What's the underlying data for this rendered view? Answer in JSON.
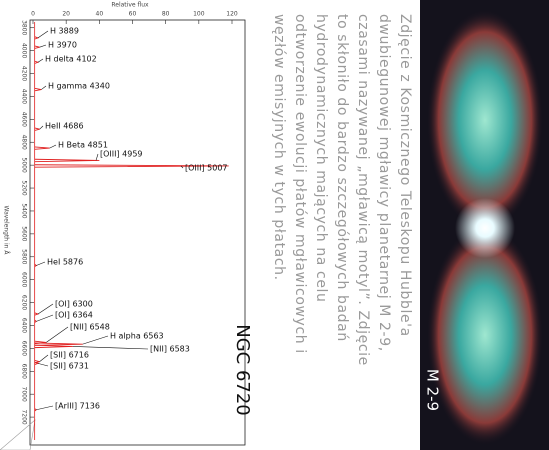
{
  "chart_data": {
    "type": "spectrum",
    "title": "NGC 6720",
    "xlabel": "Wavelength in Å",
    "ylabel": "Relative flux",
    "x": [
      3889,
      3970,
      4102,
      4340,
      4686,
      4851,
      4959,
      5007,
      5876,
      6300,
      6364,
      6548,
      6563,
      6583,
      6716,
      6731,
      7136
    ],
    "values": [
      3,
      4,
      3,
      5,
      4,
      10,
      40,
      118,
      2,
      3,
      2,
      8,
      30,
      24,
      4,
      3,
      2
    ],
    "labels": [
      "H 3889",
      "H 3970",
      "H delta 4102",
      "H gamma 4340",
      "HeII 4686",
      "H Beta 4851",
      "[OIII] 4959",
      "[OIII] 5007",
      "HeI 5876",
      "[OI] 6300",
      "[OI] 6364",
      "[NII] 6548",
      "H alpha 6563",
      "[NII] 6583",
      "[SII] 6716",
      "[SII] 6731",
      "[ArIII] 7136"
    ],
    "color": "#e02020",
    "xlim": [
      3750,
      7400
    ],
    "xticks": [
      3800,
      4000,
      4200,
      4400,
      4600,
      4800,
      5000,
      5200,
      5400,
      5600,
      5800,
      6000,
      6200,
      6400,
      6600,
      6800,
      7000,
      7200
    ],
    "ylim": [
      0,
      120
    ],
    "yticks": [
      0,
      20,
      40,
      60,
      80,
      100,
      120
    ]
  },
  "caption": {
    "lines": [
      "Zdjęcie z Kosmicznego Teleskopu Hubble'a",
      "dwubiegunowej mgławicy planetarnej M 2-9,",
      "czasami nazywanej „mgławicą motyl”. Zdjęcie",
      "to skłoniło do bardzo szczegółowych badań",
      "hydrodynamicznych mających na celu",
      "odtworzenie ewolucji płatów mgławicowych i",
      "węzłów emisyjnych w tych płatach."
    ]
  },
  "image": {
    "label": "M 2-9"
  }
}
